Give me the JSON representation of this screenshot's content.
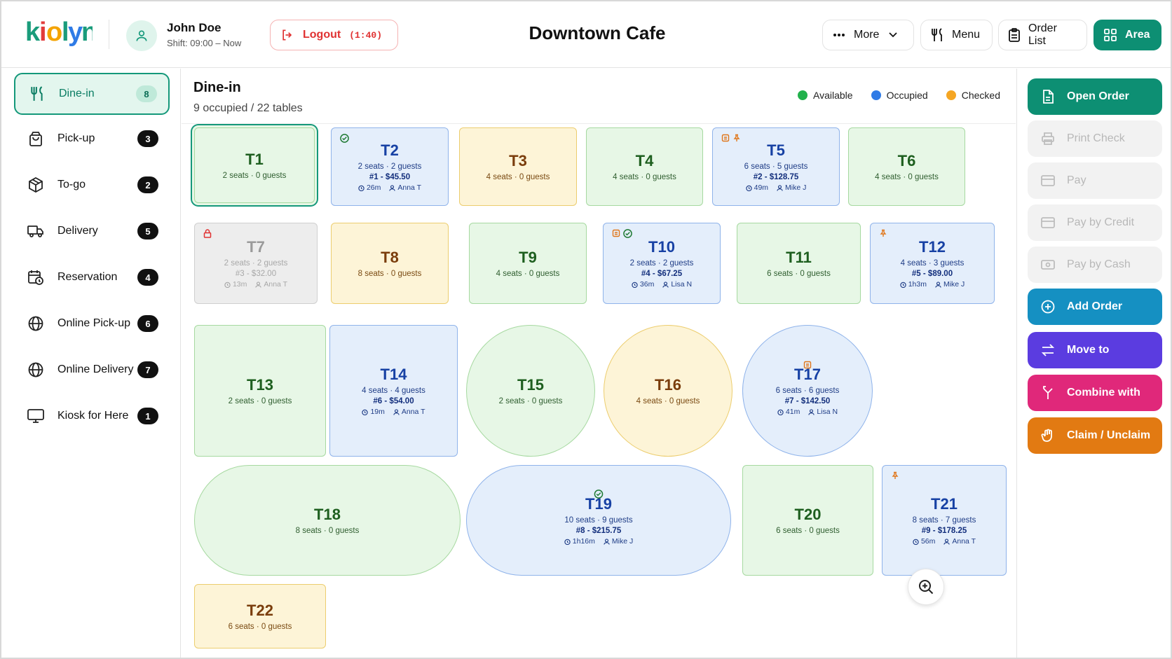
{
  "header": {
    "logo_text": "kiolyn",
    "user_name": "John Doe",
    "shift": "Shift: 09:00 – Now",
    "logout_label": "Logout",
    "logout_timer": "(1:40)",
    "title": "Downtown Cafe",
    "more_label": "More",
    "menu_label": "Menu",
    "order_list_label": "Order List",
    "area_label": "Area"
  },
  "sidebar": {
    "items": [
      {
        "label": "Dine-in",
        "count": "8",
        "icon": "fork-knife-icon"
      },
      {
        "label": "Pick-up",
        "count": "3",
        "icon": "shopping-bag-icon"
      },
      {
        "label": "To-go",
        "count": "2",
        "icon": "box-icon"
      },
      {
        "label": "Delivery",
        "count": "5",
        "icon": "truck-icon"
      },
      {
        "label": "Reservation",
        "count": "4",
        "icon": "calendar-clock-icon"
      },
      {
        "label": "Online Pick-up",
        "count": "6",
        "icon": "globe-icon"
      },
      {
        "label": "Online Delivery",
        "count": "7",
        "icon": "globe-icon"
      },
      {
        "label": "Kiosk for Here",
        "count": "1",
        "icon": "monitor-icon"
      }
    ]
  },
  "main": {
    "title": "Dine-in",
    "subtitle": "9 occupied / 22 tables",
    "legend": [
      {
        "label": "Available",
        "color": "#22b14c"
      },
      {
        "label": "Occupied",
        "color": "#2f7be6"
      },
      {
        "label": "Checked",
        "color": "#f5a623"
      }
    ],
    "tables": [
      {
        "name": "T1",
        "seats": "2 seats · 0 guests"
      },
      {
        "name": "T2",
        "seats": "2 seats · 2 guests",
        "order": "#1 - $45.50",
        "time": "26m",
        "server": "Anna T"
      },
      {
        "name": "T3",
        "seats": "4 seats · 0 guests"
      },
      {
        "name": "T4",
        "seats": "4 seats · 0 guests"
      },
      {
        "name": "T5",
        "seats": "6 seats · 5 guests",
        "order": "#2 - $128.75",
        "time": "49m",
        "server": "Mike J"
      },
      {
        "name": "T6",
        "seats": "4 seats · 0 guests"
      },
      {
        "name": "T7",
        "seats": "2 seats · 2 guests",
        "order": "#3 - $32.00",
        "time": "13m",
        "server": "Anna T"
      },
      {
        "name": "T8",
        "seats": "8 seats · 0 guests"
      },
      {
        "name": "T9",
        "seats": "4 seats · 0 guests"
      },
      {
        "name": "T10",
        "seats": "2 seats · 2 guests",
        "order": "#4 - $67.25",
        "time": "36m",
        "server": "Lisa N"
      },
      {
        "name": "T11",
        "seats": "6 seats · 0 guests"
      },
      {
        "name": "T12",
        "seats": "4 seats · 3 guests",
        "order": "#5 - $89.00",
        "time": "1h3m",
        "server": "Mike J"
      },
      {
        "name": "T13",
        "seats": "2 seats · 0 guests"
      },
      {
        "name": "T14",
        "seats": "4 seats · 4 guests",
        "order": "#6 - $54.00",
        "time": "19m",
        "server": "Anna T"
      },
      {
        "name": "T15",
        "seats": "2 seats · 0 guests"
      },
      {
        "name": "T16",
        "seats": "4 seats · 0 guests"
      },
      {
        "name": "T17",
        "seats": "6 seats · 6 guests",
        "order": "#7 - $142.50",
        "time": "41m",
        "server": "Lisa N"
      },
      {
        "name": "T18",
        "seats": "8 seats · 0 guests"
      },
      {
        "name": "T19",
        "seats": "10 seats · 9 guests",
        "order": "#8 - $215.75",
        "time": "1h16m",
        "server": "Mike J"
      },
      {
        "name": "T20",
        "seats": "6 seats · 0 guests"
      },
      {
        "name": "T21",
        "seats": "8 seats · 7 guests",
        "order": "#9 - $178.25",
        "time": "56m",
        "server": "Anna T"
      },
      {
        "name": "T22",
        "seats": "6 seats · 0 guests"
      }
    ]
  },
  "actions": {
    "open_order": "Open Order",
    "print_check": "Print Check",
    "pay": "Pay",
    "pay_credit": "Pay by Credit",
    "pay_cash": "Pay by Cash",
    "add_order": "Add Order",
    "move_to": "Move to",
    "combine_with": "Combine with",
    "claim_unclaim": "Claim / Unclaim",
    "colors": {
      "open_order": "#0d8f73",
      "add_order": "#1590c2",
      "move_to": "#5b3ce0",
      "combine_with": "#e0287a",
      "claim_unclaim": "#e27a12"
    }
  }
}
